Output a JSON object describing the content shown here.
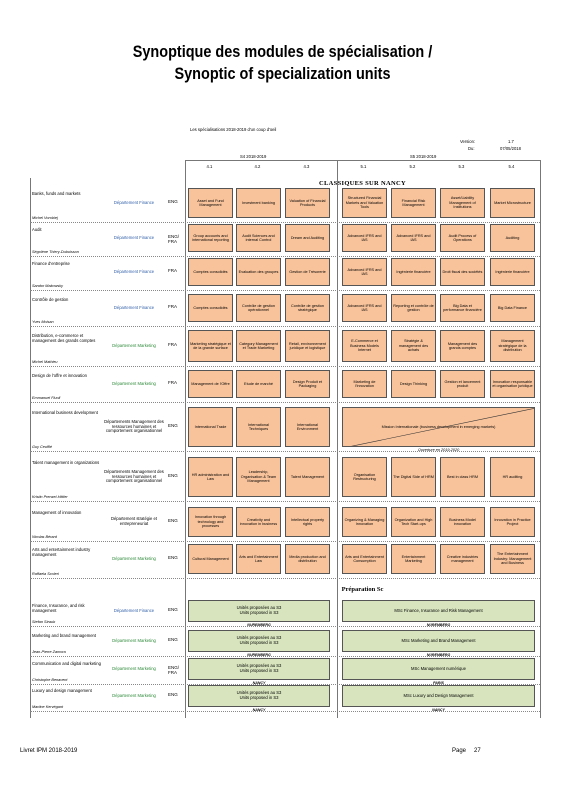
{
  "header": {
    "title_fr": "Synoptique des modules de spécialisation /",
    "title_en": "Synoptic of specialization units"
  },
  "table": {
    "caption": "Les spécialisations 2018-2019 d'un coup d'oeil",
    "version_label": "Version:",
    "version": "1.7",
    "date_label": "Du:",
    "date": "07/05/2018",
    "semesters": [
      "S4 2018-2019",
      "S5 2018-2019"
    ],
    "codes": [
      "4.1",
      "4.2",
      "4.3",
      "5.1",
      "5.2",
      "5.3",
      "5.4"
    ],
    "orange": "#f8c39b",
    "green": "#d7e4bd",
    "section1": "CLASSIQUES SUR NANCY",
    "section2": "Préparation Sc",
    "rows": [
      {
        "name": "Banks, funds and markets",
        "person": "Michel Vorobiej",
        "department": {
          "text": "Département Finance",
          "color": "#2f5ea8"
        },
        "language": "ENG",
        "s4": [
          "Asset and Fund Management",
          "Investment banking",
          "Valuation of Financial Products"
        ],
        "s5": [
          "Structured Financial Markets and Valuation Tools",
          "Financial Risk Management",
          "Asset/Liability Management of Institutions",
          "Market Microstructure"
        ]
      },
      {
        "name": "Audit",
        "person": "Ségolène Thiery-Dubuisson",
        "department": {
          "text": "Département Finance",
          "color": "#2f5ea8"
        },
        "language": "ENG/ FRA",
        "s4": [
          "Group accounts and international reporting",
          "Audit Sciences and internal Control",
          "Dream and Auditing"
        ],
        "s5": [
          "Advanced IFRS and IAS",
          "Advanced IFRS and IAS",
          "Audit Process of Operations",
          "Auditing"
        ]
      },
      {
        "name": "Finance d'entreprise",
        "person": "Sandor Makowsky",
        "department": {
          "text": "Département Finance",
          "color": "#2f5ea8"
        },
        "language": "FRA",
        "s4": [
          "Comptes consolidés",
          "Evaluation des groupes",
          "Gestion de Trésorerie"
        ],
        "s5": [
          "Advanced IFRS and IAS",
          "Ingénierie financière",
          "Droit fiscal des sociétés",
          "Ingénierie financière"
        ]
      },
      {
        "name": "Contrôle de gestion",
        "person": "Yves Moisan",
        "department": {
          "text": "Département Finance",
          "color": "#2f5ea8"
        },
        "language": "FRA",
        "s4": [
          "Comptes consolidés",
          "Contrôle de gestion opérationnel",
          "Contrôle de gestion stratégique"
        ],
        "s5": [
          "Advanced IFRS and IAS",
          "Reporting et contrôle de gestion",
          "Big Data et performance financière",
          "Big Data Finance"
        ]
      },
      {
        "name": "Distribution, e-commerce et management des grands comptes",
        "person": "Michel Mathieu",
        "department": {
          "text": "Département Marketing",
          "color": "#2e8b3a"
        },
        "language": "FRA",
        "s4": [
          "Marketing stratégique et de la grande surface",
          "Category Management et Trade Marketing",
          "Retail, environnement juridique et logistique"
        ],
        "s5": [
          "E-Commerce et Business Models Internet",
          "Stratégie & management des achats",
          "Management des grands comptes",
          "Management stratégique de la distribution"
        ]
      },
      {
        "name": "Design de l'offre et innovation",
        "person": "Emmanuel Fluoll",
        "department": {
          "text": "Département Marketing",
          "color": "#2e8b3a"
        },
        "language": "FRA",
        "s4": [
          "Management de l'Offre",
          "Etude de marché",
          "Design Produit et Packaging"
        ],
        "s5": [
          "Marketing de l'innovation",
          "Design Thinking",
          "Gestion et lancement produit",
          "Innovation responsable et organisation juridique"
        ]
      },
      {
        "name": "International business development",
        "person": "Guy Ceuffié",
        "department": {
          "text": "Départements Management des ressources humaines et comportement organisationnel",
          "color": "#000000"
        },
        "language": "ENG",
        "s4": [
          "International Trade",
          "International Techniques",
          "International Environment"
        ],
        "s5": "Mission Internationale (business development in emerging markets)",
        "note": "Ouverture en 2019-2020"
      },
      {
        "name": "Talent management in organizations",
        "person": "Kristin Prenzel-Hittler",
        "department": {
          "text": "Départements Management des ressources humaines et comportement organisationnel",
          "color": "#000000"
        },
        "language": "ENG",
        "s4": [
          "HR administration and Law",
          "Leadership, Organisation & Team Management",
          "Talent Management"
        ],
        "s5": [
          "Organisation Restructuring",
          "The Digital Side of HRM",
          "Best in class HRM",
          "HR auditing"
        ]
      },
      {
        "name": "Management of innovation",
        "person": "Nicolas Bérard",
        "department": {
          "text": "Département stratégie et entrepreneuriat",
          "color": "#000000"
        },
        "language": "ENG",
        "s4": [
          "Innovation through technology and processes",
          "Creativity and innovation in business",
          "Intellectual property rights"
        ],
        "s5": [
          "Organizing & Managing Innovation",
          "Organization and High Tech Start-ups",
          "Business Model innovation",
          "Innovation in Practice Project"
        ]
      },
      {
        "name": "Arts and entertainment industry management",
        "person": "Raffaela Scoleri",
        "department": {
          "text": "Département Marketing",
          "color": "#2e8b3a"
        },
        "language": "ENG",
        "s4": [
          "Cultural Management",
          "Arts and Entertainment Law",
          "Media production and distribution"
        ],
        "s5": [
          "Arts and Entertainment Consumption",
          "Entertainment Marketing",
          "Creative industries management",
          "The Entertainment Industry: Management and Business"
        ]
      },
      {
        "name": "Finance, Insurance, and risk management",
        "person": "Stefan Straub",
        "department": {
          "text": "Département Finance",
          "color": "#2f5ea8"
        },
        "language": "ENG",
        "s4": {
          "lines": [
            "Unités proposées au S3",
            "Units proposed in S3"
          ],
          "city": "NUREMBERG"
        },
        "s5": {
          "lines": [
            "MSc Finance, Insurance and Risk Management"
          ],
          "city": "NUREMBERG"
        }
      },
      {
        "name": "Marketing and brand management",
        "person": "Jean-Pierre Zamora",
        "department": {
          "text": "Département Marketing",
          "color": "#2e8b3a"
        },
        "language": "ENG",
        "s4": {
          "lines": [
            "Unités proposées au S3",
            "Units proposed in S3"
          ],
          "city": "NUREMBERG"
        },
        "s5": {
          "lines": [
            "MSc Marketing and Brand Management"
          ],
          "city": "NUREMBERG"
        }
      },
      {
        "name": "Communication and digital marketing",
        "person": "Christophe Benavent",
        "department": {
          "text": "Département Marketing",
          "color": "#2e8b3a"
        },
        "language": "ENG/ FRA",
        "s4": {
          "lines": [
            "Unités proposées au S3",
            "Units proposed in S3"
          ],
          "city": "NANCY"
        },
        "s5": {
          "lines": [
            "MSc Management numérique"
          ],
          "city": "PARIS"
        }
      },
      {
        "name": "Luxury and design management",
        "person": "Martine Kervégant",
        "department": {
          "text": "Département Marketing",
          "color": "#2e8b3a"
        },
        "language": "ENG",
        "s4": {
          "lines": [
            "Unités proposées au S3",
            "Units proposed in S3"
          ],
          "city": "NANCY"
        },
        "s5": {
          "lines": [
            "MSc Luxury and Design Management"
          ],
          "city": "NANCY"
        }
      }
    ]
  },
  "footer": {
    "left": "Livret IPM 2018-2019",
    "page_label": "Page",
    "page": "27"
  }
}
